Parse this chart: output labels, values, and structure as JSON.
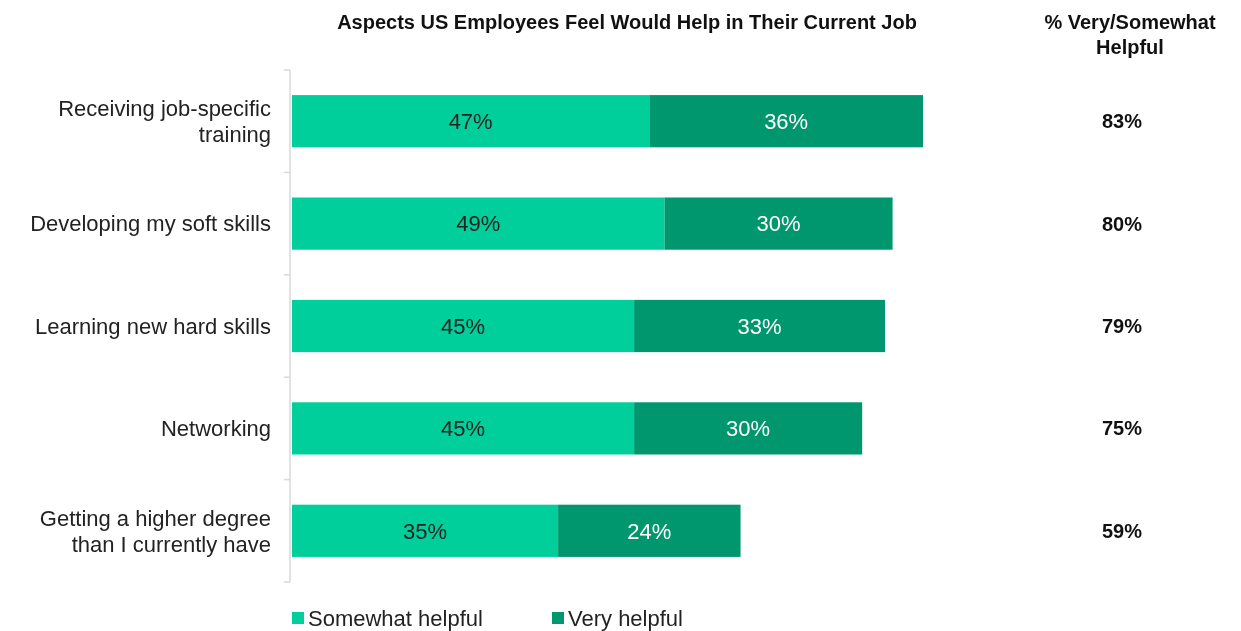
{
  "chart_data": {
    "type": "bar",
    "orientation": "horizontal",
    "stacked": true,
    "title": "Aspects US Employees Feel Would Help in Their Current Job",
    "categories": [
      "Receiving job-specific training",
      "Developing my soft skills",
      "Learning new hard skills",
      "Networking",
      "Getting a higher degree than I currently have"
    ],
    "series": [
      {
        "name": "Somewhat helpful",
        "color": "#00cf9b",
        "values": [
          47,
          49,
          45,
          45,
          35
        ],
        "value_labels": [
          "47%",
          "49%",
          "45%",
          "45%",
          "35%"
        ]
      },
      {
        "name": "Very helpful",
        "color": "#00976e",
        "values": [
          36,
          30,
          33,
          30,
          24
        ],
        "value_labels": [
          "36%",
          "30%",
          "33%",
          "30%",
          "24%"
        ]
      }
    ],
    "annotations": [
      "% Very/Somewhat Helpful",
      "83%",
      "80%",
      "79%",
      "75%",
      "59%"
    ],
    "legend": "bottom"
  }
}
